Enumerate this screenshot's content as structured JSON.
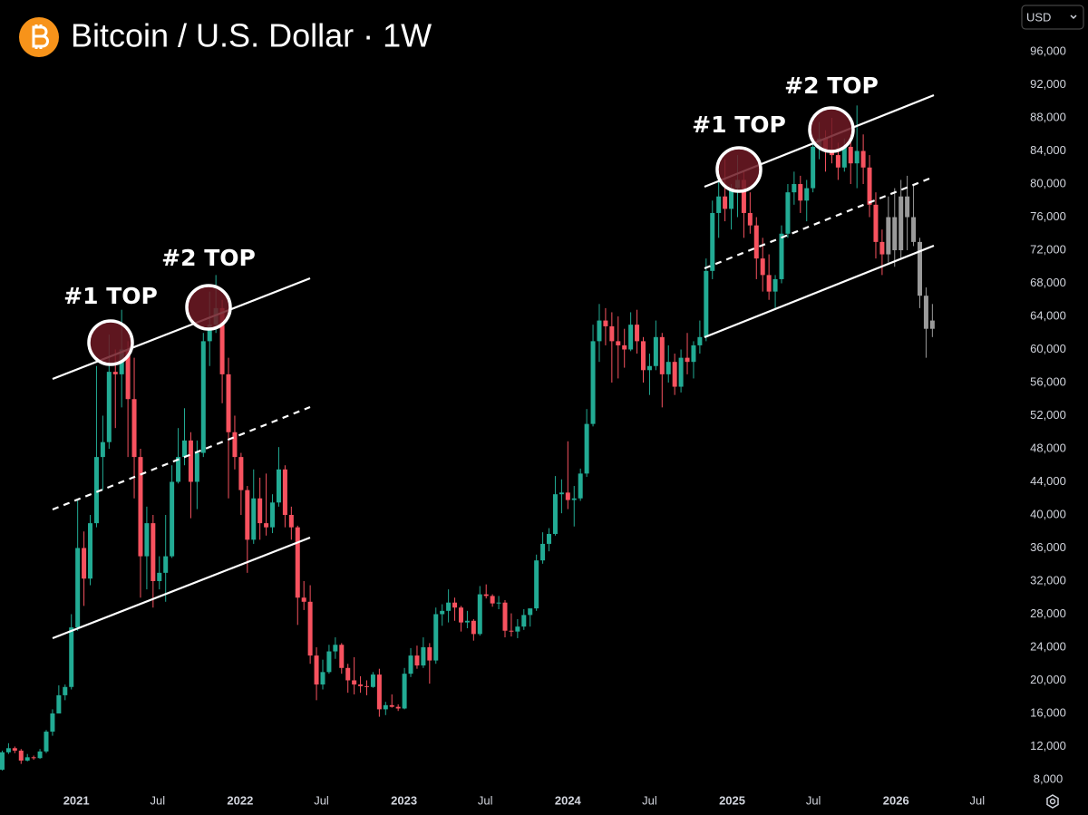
{
  "chart_data": {
    "type": "candlestick",
    "title": "Bitcoin / U.S. Dollar · 1W",
    "currency": "USD",
    "xlim": [
      "2020-07-15",
      "2026-09-14"
    ],
    "xticks": [
      {
        "value": "2021-01-01",
        "label": "2021"
      },
      {
        "value": "2021-07-01",
        "label": "Jul"
      },
      {
        "value": "2022-01-01",
        "label": "2022"
      },
      {
        "value": "2022-07-01",
        "label": "Jul"
      },
      {
        "value": "2023-01-01",
        "label": "2023"
      },
      {
        "value": "2023-07-01",
        "label": "Jul"
      },
      {
        "value": "2024-01-01",
        "label": "2024"
      },
      {
        "value": "2024-07-01",
        "label": "Jul"
      },
      {
        "value": "2025-01-01",
        "label": "2025"
      },
      {
        "value": "2025-07-01",
        "label": "Jul"
      },
      {
        "value": "2026-01-01",
        "label": "2026"
      },
      {
        "value": "2026-07-01",
        "label": "Jul"
      }
    ],
    "ylim": [
      6900,
      102250
    ],
    "yticks": [
      {
        "value": 8000,
        "label": "8,000"
      },
      {
        "value": 12000,
        "label": "12,000"
      },
      {
        "value": 16000,
        "label": "16,000"
      },
      {
        "value": 20000,
        "label": "20,000"
      },
      {
        "value": 24000,
        "label": "24,000"
      },
      {
        "value": 28000,
        "label": "28,000"
      },
      {
        "value": 32000,
        "label": "32,000"
      },
      {
        "value": 36000,
        "label": "36,000"
      },
      {
        "value": 40000,
        "label": "40,000"
      },
      {
        "value": 44000,
        "label": "44,000"
      },
      {
        "value": 48000,
        "label": "48,000"
      },
      {
        "value": 52000,
        "label": "52,000"
      },
      {
        "value": 56000,
        "label": "56,000"
      },
      {
        "value": 60000,
        "label": "60,000"
      },
      {
        "value": 64000,
        "label": "64,000"
      },
      {
        "value": 68000,
        "label": "68,000"
      },
      {
        "value": 72000,
        "label": "72,000"
      },
      {
        "value": 76000,
        "label": "76,000"
      },
      {
        "value": 80000,
        "label": "80,000"
      },
      {
        "value": 84000,
        "label": "84,000"
      },
      {
        "value": 88000,
        "label": "88,000"
      },
      {
        "value": 92000,
        "label": "92,000"
      },
      {
        "value": 96000,
        "label": "96,000"
      }
    ],
    "grid": false,
    "annotations": [
      "#1 TOP",
      "#2 TOP",
      "#1 TOP",
      "#2 TOP"
    ],
    "series": [
      {
        "color_up": "#22ab94",
        "color_down": "#f7525f",
        "x": [
          "2020-07-20",
          "2020-08-03",
          "2020-08-17",
          "2020-08-31",
          "2020-09-14",
          "2020-09-28",
          "2020-10-12",
          "2020-10-26",
          "2020-11-09",
          "2020-11-23",
          "2020-12-07",
          "2020-12-21",
          "2021-01-04",
          "2021-01-18",
          "2021-02-01",
          "2021-02-15",
          "2021-03-01",
          "2021-03-15",
          "2021-03-29",
          "2021-04-12",
          "2021-04-26",
          "2021-05-10",
          "2021-05-24",
          "2021-06-07",
          "2021-06-21",
          "2021-07-05",
          "2021-07-19",
          "2021-08-02",
          "2021-08-16",
          "2021-08-30",
          "2021-09-13",
          "2021-09-27",
          "2021-10-11",
          "2021-10-25",
          "2021-11-08",
          "2021-11-22",
          "2021-12-06",
          "2021-12-20",
          "2022-01-03",
          "2022-01-17",
          "2022-01-31",
          "2022-02-14",
          "2022-02-28",
          "2022-03-14",
          "2022-03-28",
          "2022-04-11",
          "2022-04-25",
          "2022-05-09",
          "2022-05-23",
          "2022-06-06",
          "2022-06-20",
          "2022-07-04",
          "2022-07-18",
          "2022-08-01",
          "2022-08-15",
          "2022-08-29",
          "2022-09-12",
          "2022-09-26",
          "2022-10-10",
          "2022-10-24",
          "2022-11-07",
          "2022-11-21",
          "2022-12-05",
          "2022-12-19",
          "2023-01-02",
          "2023-01-16",
          "2023-01-30",
          "2023-02-13",
          "2023-02-27",
          "2023-03-13",
          "2023-03-27",
          "2023-04-10",
          "2023-04-24",
          "2023-05-08",
          "2023-05-22",
          "2023-06-05",
          "2023-06-19",
          "2023-07-03",
          "2023-07-17",
          "2023-07-31",
          "2023-08-14",
          "2023-08-28",
          "2023-09-11",
          "2023-09-25",
          "2023-10-09",
          "2023-10-23",
          "2023-11-06",
          "2023-11-20",
          "2023-12-04",
          "2023-12-18",
          "2024-01-01",
          "2024-01-15",
          "2024-01-29",
          "2024-02-12",
          "2024-02-26",
          "2024-03-11",
          "2024-03-25",
          "2024-04-08",
          "2024-04-22",
          "2024-05-06",
          "2024-05-20",
          "2024-06-03",
          "2024-06-17",
          "2024-07-01",
          "2024-07-15",
          "2024-07-29",
          "2024-08-12",
          "2024-08-26",
          "2024-09-09",
          "2024-09-23",
          "2024-10-07",
          "2024-10-21",
          "2024-11-04",
          "2024-11-18",
          "2024-12-02",
          "2024-12-16",
          "2024-12-30",
          "2025-01-13",
          "2025-01-27",
          "2025-02-10",
          "2025-02-24",
          "2025-03-10",
          "2025-03-24",
          "2025-04-07",
          "2025-04-21",
          "2025-05-05",
          "2025-05-19",
          "2025-06-02",
          "2025-06-16",
          "2025-06-30",
          "2025-07-14",
          "2025-07-28",
          "2025-08-11",
          "2025-08-25",
          "2025-09-08",
          "2025-09-22",
          "2025-10-06",
          "2025-10-20",
          "2025-11-03",
          "2025-11-17",
          "2025-12-01"
        ],
        "open": [
          9200,
          11300,
          11800,
          11500,
          10300,
          10700,
          10600,
          11400,
          13800,
          16000,
          18200,
          19200,
          26400,
          36000,
          32300,
          39000,
          47000,
          48800,
          57300,
          57000,
          60000,
          54000,
          47000,
          35000,
          39000,
          32000,
          33000,
          35000,
          44000,
          47000,
          49000,
          44000,
          47500,
          61000,
          63000,
          65000,
          57000,
          50000,
          47000,
          43000,
          37000,
          42000,
          39000,
          38500,
          41500,
          45500,
          40000,
          38500,
          30000,
          29500,
          23000,
          19500,
          21000,
          23500,
          24300,
          21500,
          20000,
          19500,
          19300,
          19200,
          20700,
          16500,
          17000,
          16800,
          16600,
          20800,
          23000,
          21800,
          24000,
          22400,
          28000,
          28400,
          29400,
          28800,
          27000,
          27200,
          25600,
          30400,
          30200,
          29300,
          29400,
          26000,
          25900,
          26500,
          27900,
          28700,
          34500,
          36500,
          37700,
          42500,
          42700,
          41800,
          42000,
          45000,
          51000,
          61000,
          63500,
          62800,
          61000,
          60500,
          60000,
          63000,
          61000,
          57500,
          58000,
          61500,
          57000,
          58500,
          55500,
          59000,
          58500,
          60500,
          61500,
          69500,
          76500,
          78500,
          77000,
          79500,
          80500,
          76500,
          75000,
          71000,
          69000,
          67000,
          68500,
          74000,
          79000,
          80000,
          78000,
          79500,
          84500,
          85500,
          84000,
          83500,
          82000,
          84500,
          82500,
          84000,
          82000,
          77500,
          73000
        ],
        "high": [
          11500,
          12400,
          12000,
          11700,
          11100,
          10900,
          11700,
          14000,
          16500,
          19400,
          19500,
          28000,
          41900,
          38000,
          40000,
          58000,
          52000,
          61800,
          60000,
          64800,
          61000,
          59000,
          48000,
          41000,
          40000,
          35000,
          40000,
          46000,
          50500,
          52900,
          50000,
          49000,
          62000,
          67000,
          69000,
          66000,
          59000,
          52000,
          47500,
          43500,
          45500,
          44500,
          45000,
          42500,
          48200,
          46000,
          41000,
          38700,
          32000,
          31500,
          24000,
          22500,
          24300,
          25200,
          24500,
          22000,
          22800,
          20500,
          20000,
          21000,
          21400,
          17400,
          18300,
          17100,
          21500,
          23900,
          24200,
          25200,
          24500,
          28800,
          29200,
          31000,
          30000,
          29000,
          28400,
          27400,
          31400,
          31600,
          30400,
          30200,
          29700,
          28100,
          27400,
          28600,
          28300,
          35200,
          37900,
          38400,
          44700,
          44300,
          48900,
          43500,
          45600,
          52800,
          63000,
          65500,
          65000,
          64500,
          64000,
          62500,
          64500,
          64800,
          61500,
          59500,
          63500,
          62000,
          60500,
          59500,
          60000,
          62000,
          61000,
          63500,
          71000,
          78000,
          81000,
          83000,
          80000,
          83500,
          81500,
          79000,
          76000,
          73500,
          71500,
          69000,
          75000,
          80000,
          81500,
          81000,
          80500,
          85500,
          87500,
          86500,
          88000,
          85000,
          85500,
          86000,
          89500,
          86000,
          83500,
          79000,
          74500
        ],
        "low": [
          9100,
          11100,
          11200,
          9900,
          10200,
          10400,
          10500,
          11200,
          13300,
          16200,
          17600,
          18900,
          26000,
          29000,
          31500,
          38500,
          43000,
          48000,
          50500,
          53000,
          47000,
          42000,
          30000,
          31000,
          28800,
          31000,
          29500,
          34800,
          43800,
          46000,
          39600,
          40700,
          47000,
          58000,
          62000,
          53500,
          42000,
          45500,
          40000,
          33000,
          36500,
          37000,
          37500,
          37800,
          41000,
          38500,
          37000,
          26700,
          28500,
          22000,
          17600,
          18900,
          20800,
          22600,
          20800,
          18500,
          18300,
          18500,
          18200,
          19100,
          15600,
          15800,
          16700,
          16300,
          16500,
          20400,
          21400,
          21500,
          19600,
          22000,
          26600,
          27000,
          27200,
          25900,
          26300,
          24800,
          25400,
          29900,
          28900,
          28600,
          25200,
          25300,
          25100,
          26100,
          26500,
          28400,
          34100,
          35600,
          37500,
          40200,
          40700,
          38600,
          41700,
          44600,
          50700,
          58500,
          60500,
          56000,
          56500,
          57800,
          59800,
          59500,
          56000,
          54500,
          57500,
          53000,
          56000,
          54500,
          54800,
          57000,
          56500,
          59500,
          61000,
          68500,
          73500,
          75500,
          74500,
          76000,
          73500,
          74000,
          68500,
          67000,
          66000,
          64800,
          68000,
          73500,
          77500,
          76500,
          75500,
          79000,
          83000,
          81500,
          82500,
          80500,
          81500,
          80000,
          79500,
          80000,
          76000,
          71000,
          69000
        ],
        "close": [
          11300,
          11800,
          11500,
          10300,
          10700,
          10600,
          11400,
          13800,
          16000,
          18200,
          19200,
          26400,
          36000,
          32300,
          39000,
          47000,
          48800,
          57300,
          57000,
          60000,
          54000,
          47000,
          35000,
          39000,
          32000,
          33000,
          35000,
          44000,
          47000,
          49000,
          44000,
          47500,
          61000,
          63000,
          65000,
          57000,
          50000,
          47000,
          43000,
          37000,
          42000,
          39000,
          38500,
          41500,
          45500,
          40000,
          38500,
          30000,
          29500,
          23000,
          19500,
          21000,
          23500,
          24300,
          21500,
          20000,
          19500,
          19300,
          19200,
          20700,
          16500,
          17000,
          16800,
          16600,
          20800,
          23000,
          21800,
          24000,
          22400,
          28000,
          28400,
          29400,
          28800,
          27000,
          27200,
          25600,
          30400,
          30200,
          29300,
          29400,
          26000,
          25900,
          26500,
          27900,
          28700,
          34500,
          36500,
          37700,
          42500,
          42700,
          41800,
          42000,
          45000,
          51000,
          61000,
          63500,
          62800,
          61000,
          60500,
          60000,
          63000,
          61000,
          57500,
          58000,
          61500,
          57000,
          58500,
          55500,
          59000,
          58500,
          60500,
          61500,
          69500,
          76500,
          78500,
          77000,
          79500,
          80500,
          76500,
          75000,
          71000,
          69000,
          67000,
          68500,
          74000,
          79000,
          80000,
          78000,
          79500,
          84500,
          85500,
          84000,
          83500,
          82000,
          84500,
          82500,
          84000,
          82000,
          77500,
          73000,
          71500
        ]
      },
      {
        "color_up": "#9a9a9a",
        "color_down": "#9a9a9a",
        "x": [
          "2025-12-15",
          "2025-12-29",
          "2026-01-12",
          "2026-01-26",
          "2026-02-09",
          "2026-02-23",
          "2026-03-09",
          "2026-03-23"
        ],
        "open": [
          71500,
          76000,
          72000,
          78500,
          76000,
          73000,
          66500,
          62500
        ],
        "high": [
          78500,
          79500,
          80500,
          81000,
          80000,
          73500,
          67500,
          65500
        ],
        "low": [
          70500,
          70000,
          71000,
          72000,
          72500,
          65000,
          59000,
          61500
        ],
        "close": [
          76000,
          72000,
          78500,
          76000,
          73000,
          66500,
          62500,
          63500
        ]
      }
    ]
  }
}
